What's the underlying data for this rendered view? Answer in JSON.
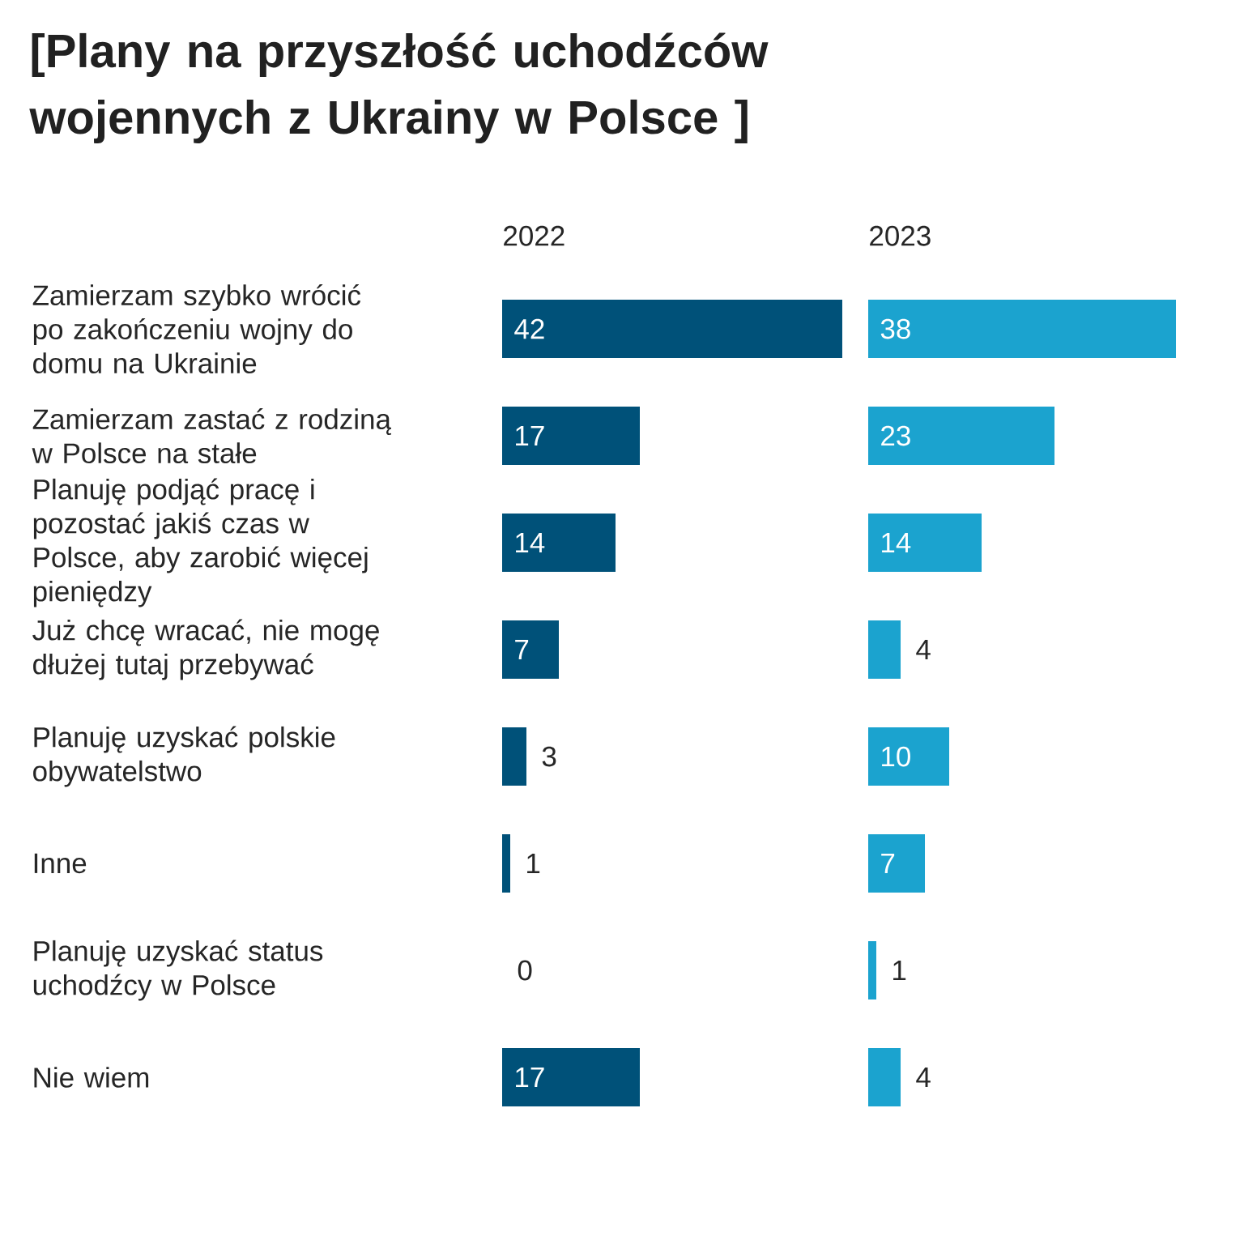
{
  "chart_data": [
    {
      "type": "bar",
      "orientation": "horizontal",
      "title": "[Plany na przyszłość uchodźców wojennych z Ukrainy w Polsce ]",
      "xlabel": "2022",
      "categories": [
        "Zamierzam szybko wrócić po zakończeniu wojny do domu na Ukrainie",
        "Zamierzam zastać z rodziną w Polsce na stałe",
        "Planuję podjąć pracę i pozostać jakiś czas w Polsce, aby zarobić więcej pieniędzy",
        "Już chcę wracać, nie mogę dłużej tutaj przebywać",
        "Planuję uzyskać polskie obywatelstwo",
        "Inne",
        "Planuję uzyskać status uchodźcy w Polsce",
        "Nie wiem"
      ],
      "values": [
        42,
        17,
        14,
        7,
        3,
        1,
        0,
        17
      ],
      "color": "#005179",
      "data_labels": true
    },
    {
      "type": "bar",
      "orientation": "horizontal",
      "xlabel": "2023",
      "values": [
        38,
        23,
        14,
        4,
        10,
        7,
        1,
        4
      ],
      "color": "#1ba3cf",
      "data_labels": true
    }
  ]
}
